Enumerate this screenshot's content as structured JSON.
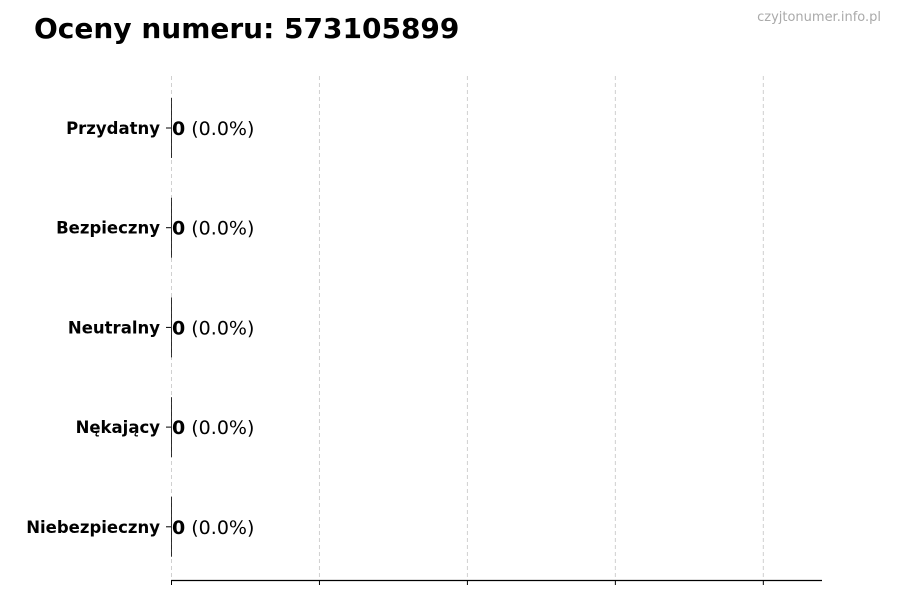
{
  "chart_data": {
    "type": "bar",
    "orientation": "horizontal",
    "title": "Oceny numeru: 573105899",
    "watermark": "czyjtonumer.info.pl",
    "categories": [
      "Przydatny",
      "Bezpieczny",
      "Neutralny",
      "Nękający",
      "Niebezpieczny"
    ],
    "values": [
      0,
      0,
      0,
      0,
      0
    ],
    "percent_labels": [
      "(0.0%)",
      "(0.0%)",
      "(0.0%)",
      "(0.0%)",
      "(0.0%)"
    ],
    "xlim": [
      0,
      4.4
    ],
    "xticks": [
      0,
      1,
      2,
      3,
      4
    ],
    "xtick_labels_shown": false,
    "grid": "vertical dashed",
    "colors": {
      "bar_edge": "#000000",
      "grid": "#d0d0d0",
      "watermark": "#aaaaaa"
    }
  }
}
